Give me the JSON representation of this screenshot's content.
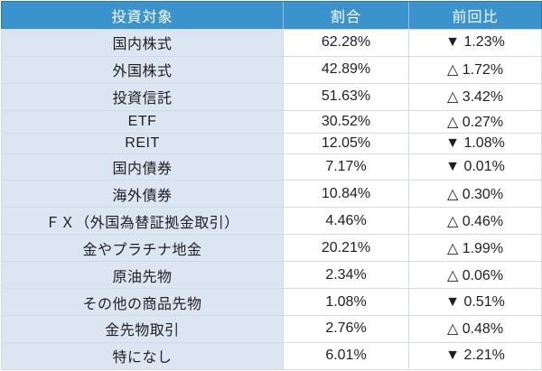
{
  "colors": {
    "header_bg": "#3b93cd",
    "header_text": "#ffffff",
    "label_column_bg": "#dce6f2",
    "grid_line": "#d3dbe5",
    "outer_border": "#9aa5af",
    "body_text": "#1f1f1f",
    "down_triangle": "#1f1f1f",
    "up_triangle": "#1f1f1f"
  },
  "icons": {
    "down_triangle_glyph": "▼",
    "up_triangle_glyph": "△"
  },
  "table": {
    "columns": [
      "投資対象",
      "割合",
      "前回比"
    ],
    "rows": [
      {
        "label": "国内株式",
        "ratio": "62.28%",
        "change": "▼ 1.23%",
        "direction": "down"
      },
      {
        "label": "外国株式",
        "ratio": "42.89%",
        "change": "△ 1.72%",
        "direction": "up"
      },
      {
        "label": "投資信託",
        "ratio": "51.63%",
        "change": "△ 3.42%",
        "direction": "up"
      },
      {
        "label": "ETF",
        "ratio": "30.52%",
        "change": "△ 0.27%",
        "direction": "up"
      },
      {
        "label": "REIT",
        "ratio": "12.05%",
        "change": "▼ 1.08%",
        "direction": "down"
      },
      {
        "label": "国内債券",
        "ratio": "7.17%",
        "change": "▼ 0.01%",
        "direction": "down"
      },
      {
        "label": "海外債券",
        "ratio": "10.84%",
        "change": "△ 0.30%",
        "direction": "up"
      },
      {
        "label": "ＦＸ（外国為替証拠金取引）",
        "ratio": "4.46%",
        "change": "△ 0.46%",
        "direction": "up"
      },
      {
        "label": "金やプラチナ地金",
        "ratio": "20.21%",
        "change": "△ 1.99%",
        "direction": "up"
      },
      {
        "label": "原油先物",
        "ratio": "2.34%",
        "change": "△ 0.06%",
        "direction": "up"
      },
      {
        "label": "その他の商品先物",
        "ratio": "1.08%",
        "change": "▼ 0.51%",
        "direction": "down"
      },
      {
        "label": "金先物取引",
        "ratio": "2.76%",
        "change": "△ 0.48%",
        "direction": "up"
      },
      {
        "label": "特になし",
        "ratio": "6.01%",
        "change": "▼ 2.21%",
        "direction": "down"
      }
    ]
  },
  "chart_data": {
    "type": "table",
    "title": "",
    "columns": [
      "投資対象",
      "割合",
      "前回比"
    ],
    "rows": [
      {
        "target": "国内株式",
        "ratio_pct": 62.28,
        "change_pct": -1.23
      },
      {
        "target": "外国株式",
        "ratio_pct": 42.89,
        "change_pct": 1.72
      },
      {
        "target": "投資信託",
        "ratio_pct": 51.63,
        "change_pct": 3.42
      },
      {
        "target": "ETF",
        "ratio_pct": 30.52,
        "change_pct": 0.27
      },
      {
        "target": "REIT",
        "ratio_pct": 12.05,
        "change_pct": -1.08
      },
      {
        "target": "国内債券",
        "ratio_pct": 7.17,
        "change_pct": -0.01
      },
      {
        "target": "海外債券",
        "ratio_pct": 10.84,
        "change_pct": 0.3
      },
      {
        "target": "ＦＸ（外国為替証拠金取引）",
        "ratio_pct": 4.46,
        "change_pct": 0.46
      },
      {
        "target": "金やプラチナ地金",
        "ratio_pct": 20.21,
        "change_pct": 1.99
      },
      {
        "target": "原油先物",
        "ratio_pct": 2.34,
        "change_pct": 0.06
      },
      {
        "target": "その他の商品先物",
        "ratio_pct": 1.08,
        "change_pct": -0.51
      },
      {
        "target": "金先物取引",
        "ratio_pct": 2.76,
        "change_pct": 0.48
      },
      {
        "target": "特になし",
        "ratio_pct": 6.01,
        "change_pct": -2.21
      }
    ]
  }
}
